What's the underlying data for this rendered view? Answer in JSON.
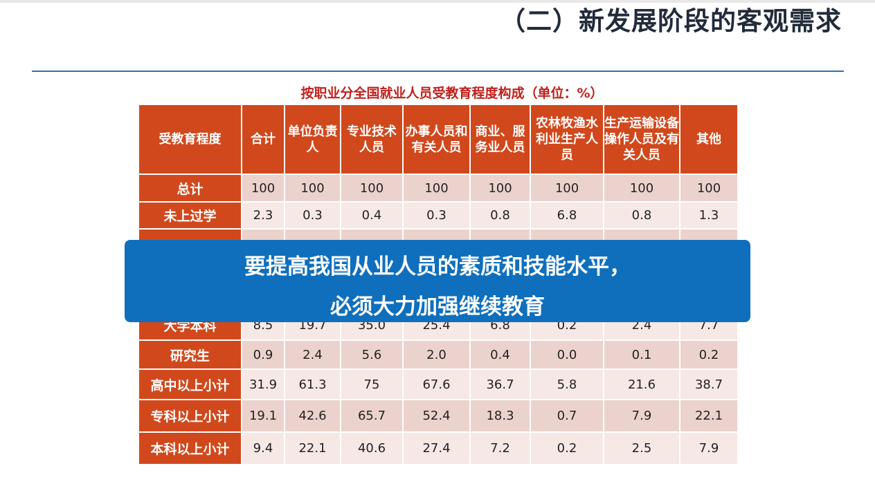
{
  "slide": {
    "title": "（二）新发展阶段的客观需求",
    "table_caption": "按职业分全国就业人员受教育程度构成（单位：%）"
  },
  "table": {
    "headers": [
      "受教育程度",
      "合计",
      "单位负责人",
      "专业技术人员",
      "办事人员和有关人员",
      "商业、服务业人员",
      "农林牧渔水利业生产人员",
      "生产运输设备操作人员及有关人员",
      "其他"
    ],
    "rows": [
      {
        "label": "总计",
        "values": [
          "100",
          "100",
          "100",
          "100",
          "100",
          "100",
          "100",
          "100"
        ]
      },
      {
        "label": "未上过学",
        "values": [
          "2.3",
          "0.3",
          "0.4",
          "0.3",
          "0.8",
          "6.8",
          "0.8",
          "1.3"
        ]
      },
      {
        "label": "",
        "values": [
          "",
          "",
          "",
          "",
          "",
          "",
          "",
          ""
        ]
      },
      {
        "label": "",
        "values": [
          "",
          "",
          "",
          "",
          "",
          "",
          "",
          ""
        ]
      },
      {
        "label": "",
        "values": [
          "",
          "",
          "",
          "",
          "",
          "",
          "",
          ""
        ]
      },
      {
        "label": "大学本科",
        "values": [
          "8.5",
          "19.7",
          "35.0",
          "25.4",
          "6.8",
          "0.2",
          "2.4",
          "7.7"
        ]
      },
      {
        "label": "研究生",
        "values": [
          "0.9",
          "2.4",
          "5.6",
          "2.0",
          "0.4",
          "0.0",
          "0.1",
          "0.2"
        ]
      },
      {
        "label": "高中以上小计",
        "values": [
          "31.9",
          "61.3",
          "75",
          "67.6",
          "36.7",
          "5.8",
          "21.6",
          "38.7"
        ]
      },
      {
        "label": "专科以上小计",
        "values": [
          "19.1",
          "42.6",
          "65.7",
          "52.4",
          "18.3",
          "0.7",
          "7.9",
          "22.1"
        ]
      },
      {
        "label": "本科以上小计",
        "values": [
          "9.4",
          "22.1",
          "40.6",
          "27.4",
          "7.2",
          "0.2",
          "2.5",
          "7.9"
        ]
      }
    ]
  },
  "callout": {
    "line1": "要提高我国从业人员的素质和技能水平，",
    "line2": "必须大力加强继续教育"
  },
  "colors": {
    "header_bg": "#d1481d",
    "row_odd": "#ecd2cc",
    "row_even": "#f6e8e5",
    "callout_bg": "#0f6fbd",
    "caption": "#c0201b",
    "rule": "#2f6fb0"
  }
}
